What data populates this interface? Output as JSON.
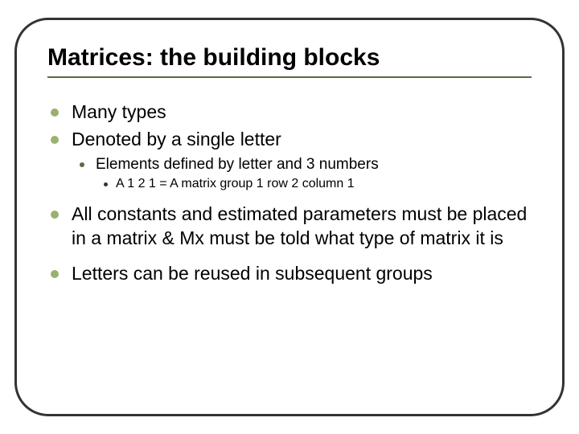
{
  "slide": {
    "title": "Matrices: the building blocks",
    "colors": {
      "frame_border": "#333333",
      "title_underline": "#5a6b42",
      "bullet_l1": "#9bb06f",
      "bullet_l2": "#5a6b42",
      "bullet_l3": "#333333",
      "text": "#000000",
      "background": "#ffffff"
    },
    "typography": {
      "title_fontsize": 30,
      "l1_fontsize": 23,
      "l2_fontsize": 19,
      "l3_fontsize": 16,
      "font_family": "Arial"
    },
    "bullets": {
      "b1": "Many types",
      "b2": "Denoted by a single letter",
      "b2_sub1": "Elements defined by letter and 3 numbers",
      "b2_sub1_sub1": "A 1 2 1 = A matrix group 1 row 2 column 1",
      "b3": "All constants and estimated parameters must be placed in a matrix & Mx must be told what type of matrix it is",
      "b4": "Letters can be reused in subsequent groups"
    }
  }
}
